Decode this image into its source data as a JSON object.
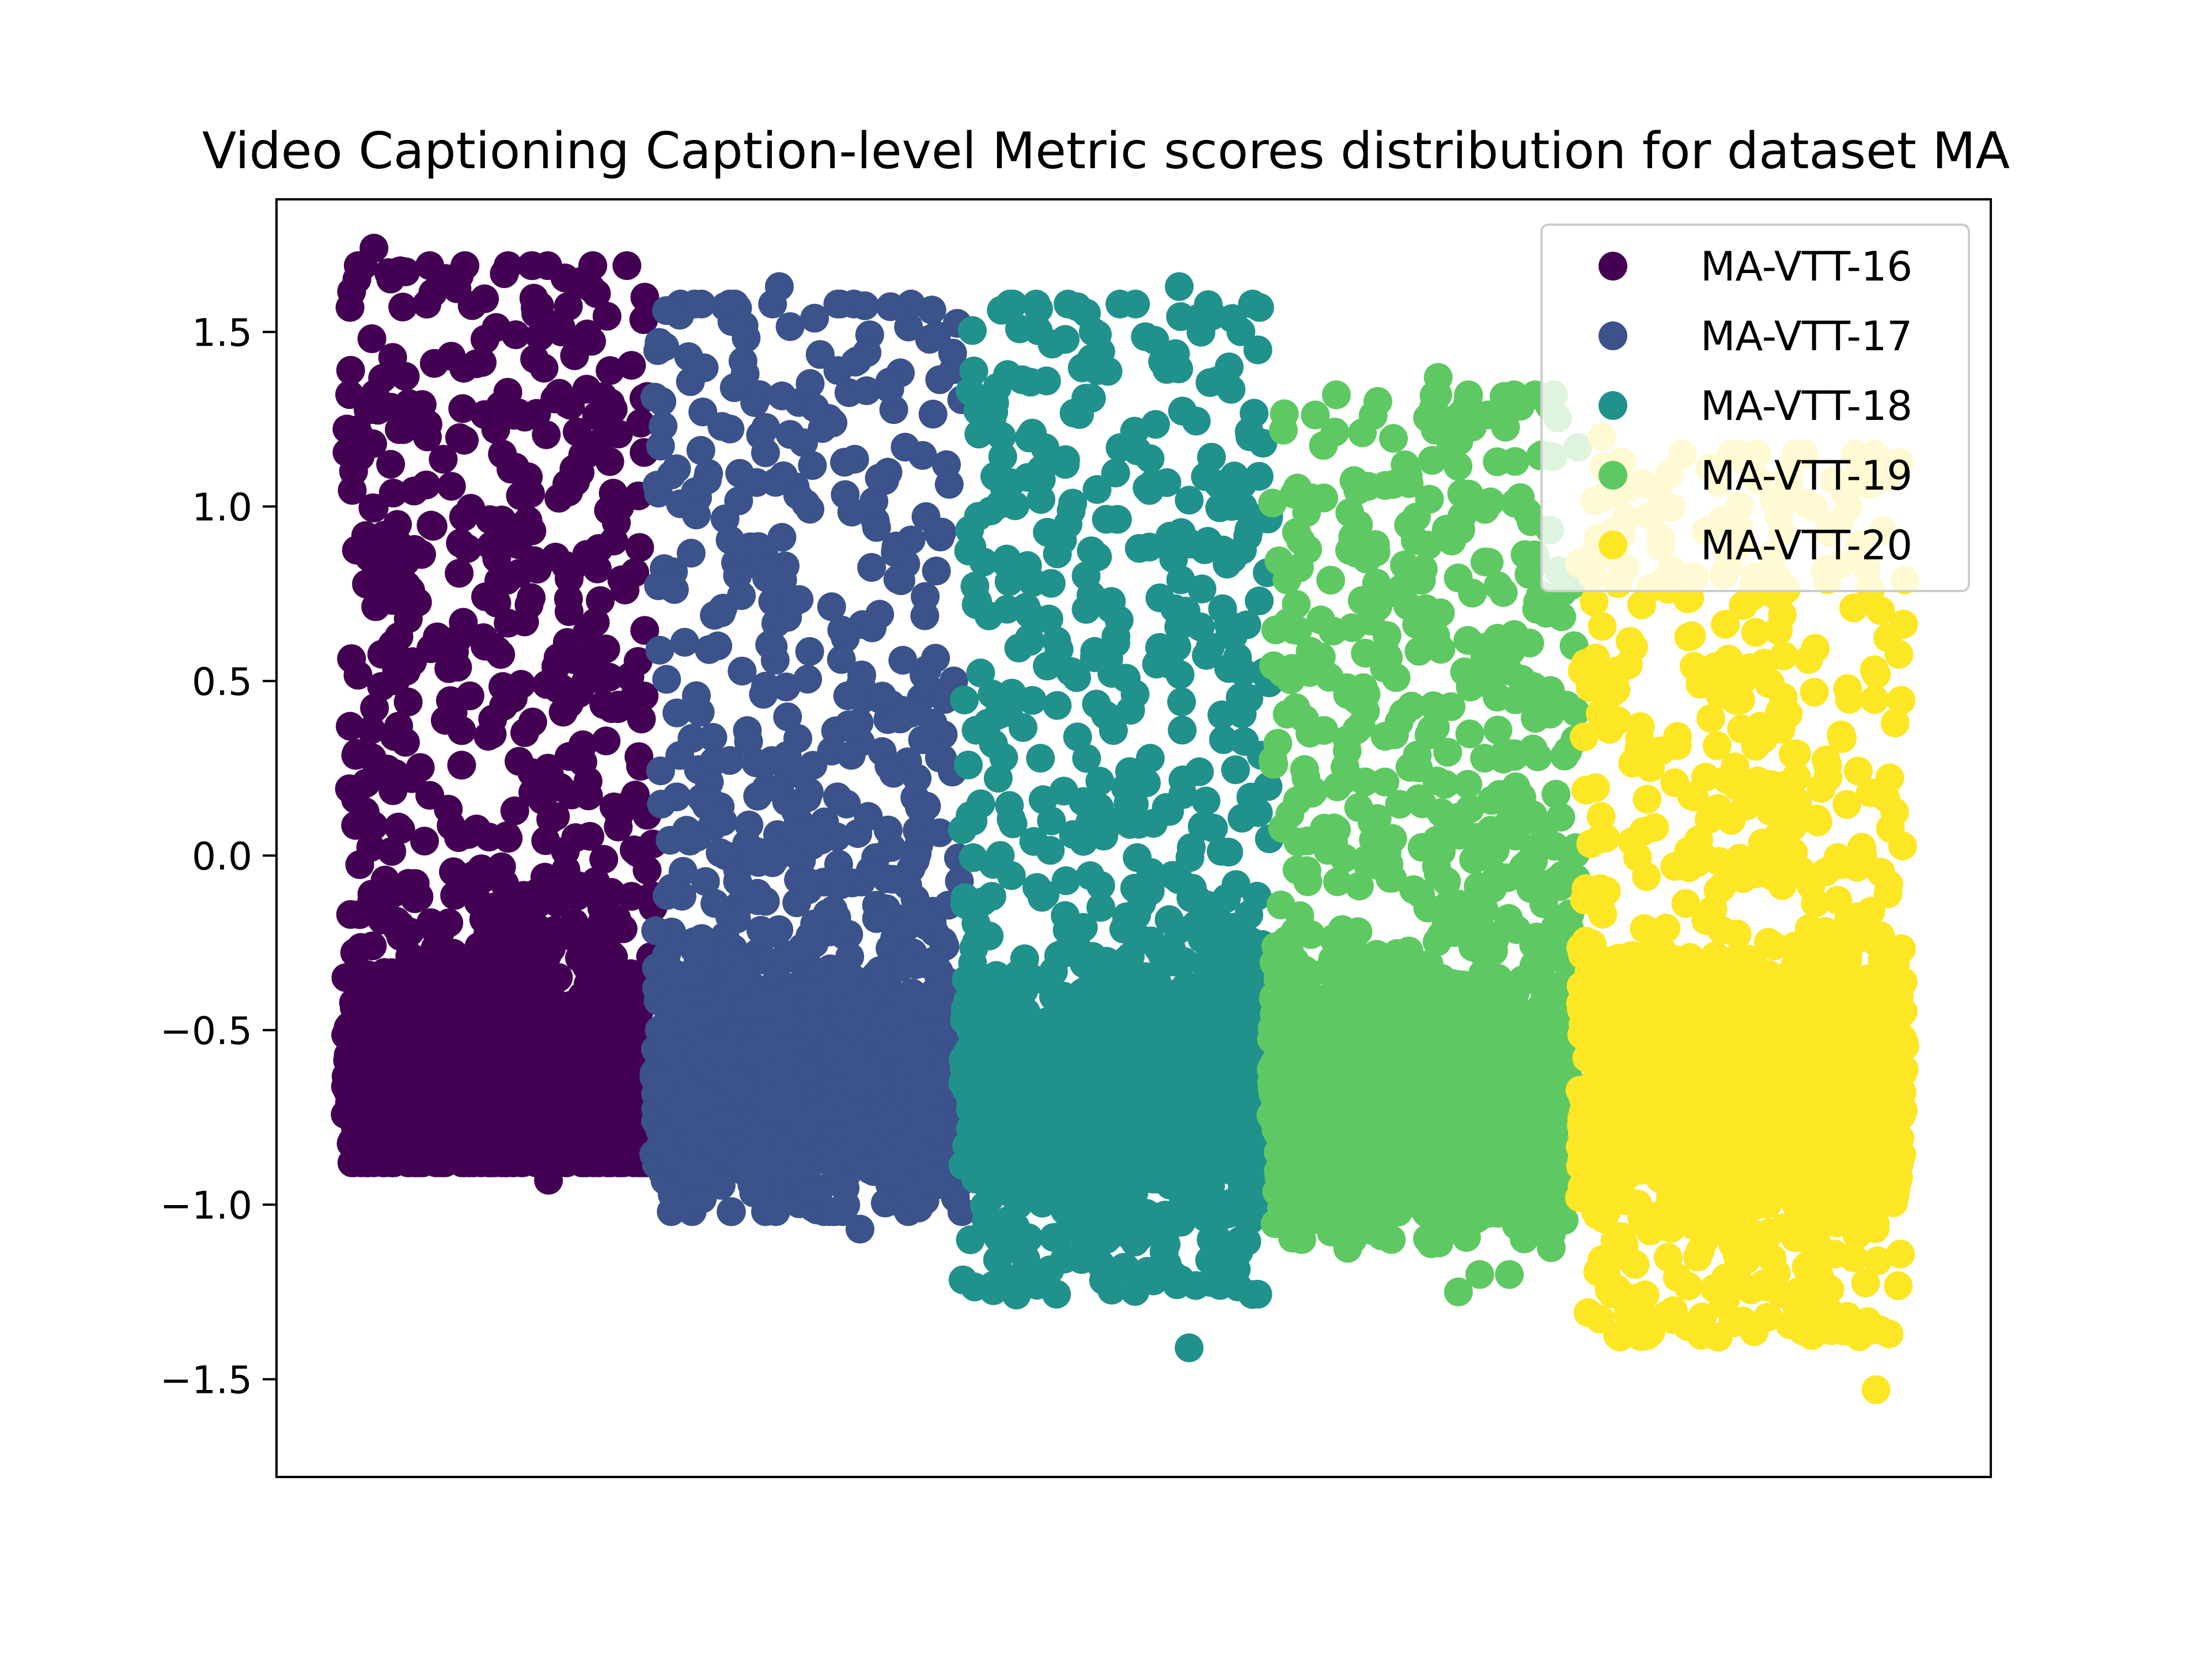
{
  "chart_data": {
    "type": "scatter",
    "title": "Video Captioning Caption-level Metric scores distribution for dataset MA",
    "xlabel": "",
    "ylabel": "",
    "xlim": [
      0,
      5
    ],
    "ylim": [
      -1.78,
      1.88
    ],
    "xticks_visible": false,
    "yticks": [
      {
        "value": 1.5,
        "label": "1.5"
      },
      {
        "value": 1.0,
        "label": "1.0"
      },
      {
        "value": 0.5,
        "label": "0.5"
      },
      {
        "value": 0.0,
        "label": "0.0"
      },
      {
        "value": -0.5,
        "label": "−0.5"
      },
      {
        "value": -1.0,
        "label": "−1.0"
      },
      {
        "value": -1.5,
        "label": "−1.5"
      }
    ],
    "grid": false,
    "legend_position": "upper right",
    "series": [
      {
        "name": "MA-VTT-16",
        "color": "#440154",
        "x_range": [
          0.2,
          1.1
        ],
        "y_min": -0.93,
        "y_max": 1.74,
        "points_shown": 1500
      },
      {
        "name": "MA-VTT-17",
        "color": "#3b528b",
        "x_range": [
          1.1,
          2.0
        ],
        "y_min": -1.07,
        "y_max": 1.63,
        "points_shown": 1500
      },
      {
        "name": "MA-VTT-18",
        "color": "#21918c",
        "x_range": [
          2.0,
          2.9
        ],
        "y_min": -1.41,
        "y_max": 1.63,
        "points_shown": 1500
      },
      {
        "name": "MA-VTT-19",
        "color": "#5ec962",
        "x_range": [
          2.9,
          3.8
        ],
        "y_min": -1.25,
        "y_max": 1.37,
        "points_shown": 1500
      },
      {
        "name": "MA-VTT-20",
        "color": "#fde725",
        "x_range": [
          3.8,
          4.75
        ],
        "y_min": -1.53,
        "y_max": 1.2,
        "points_shown": 1500
      }
    ]
  }
}
